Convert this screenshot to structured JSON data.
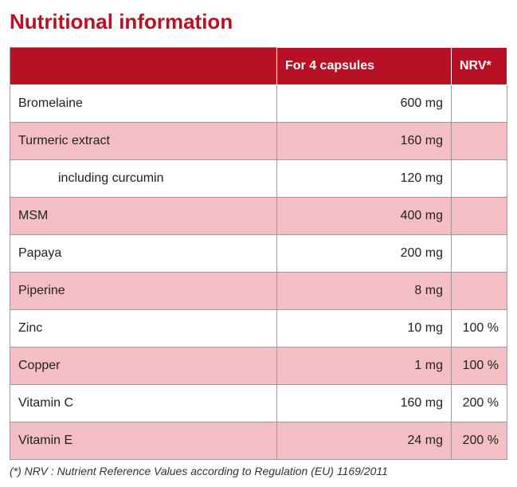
{
  "title": "Nutritional information",
  "colors": {
    "accent": "#b81125",
    "header_bg": "#b81125",
    "header_text": "#ffffff",
    "row_even_bg": "#ffffff",
    "row_odd_bg": "#f4bfc4",
    "border": "#999999",
    "text": "#222222"
  },
  "table": {
    "columns": [
      "",
      "For 4 capsules",
      "NRV*"
    ],
    "rows": [
      {
        "name": "Bromelaine",
        "amount": "600 mg",
        "nrv": "",
        "indent": false,
        "bg": "even"
      },
      {
        "name": "Turmeric extract",
        "amount": "160 mg",
        "nrv": "",
        "indent": false,
        "bg": "odd"
      },
      {
        "name": "including curcumin",
        "amount": "120 mg",
        "nrv": "",
        "indent": true,
        "bg": "even"
      },
      {
        "name": "MSM",
        "amount": "400 mg",
        "nrv": "",
        "indent": false,
        "bg": "odd"
      },
      {
        "name": "Papaya",
        "amount": "200 mg",
        "nrv": "",
        "indent": false,
        "bg": "even"
      },
      {
        "name": "Piperine",
        "amount": "8 mg",
        "nrv": "",
        "indent": false,
        "bg": "odd"
      },
      {
        "name": "Zinc",
        "amount": "10 mg",
        "nrv": "100 %",
        "indent": false,
        "bg": "even"
      },
      {
        "name": "Copper",
        "amount": "1 mg",
        "nrv": "100 %",
        "indent": false,
        "bg": "odd"
      },
      {
        "name": "Vitamin C",
        "amount": "160 mg",
        "nrv": "200 %",
        "indent": false,
        "bg": "even"
      },
      {
        "name": "Vitamin E",
        "amount": "24 mg",
        "nrv": "200 %",
        "indent": false,
        "bg": "odd"
      }
    ]
  },
  "footnote": "(*) NRV : Nutrient Reference Values according to Regulation (EU) 1169/2011"
}
